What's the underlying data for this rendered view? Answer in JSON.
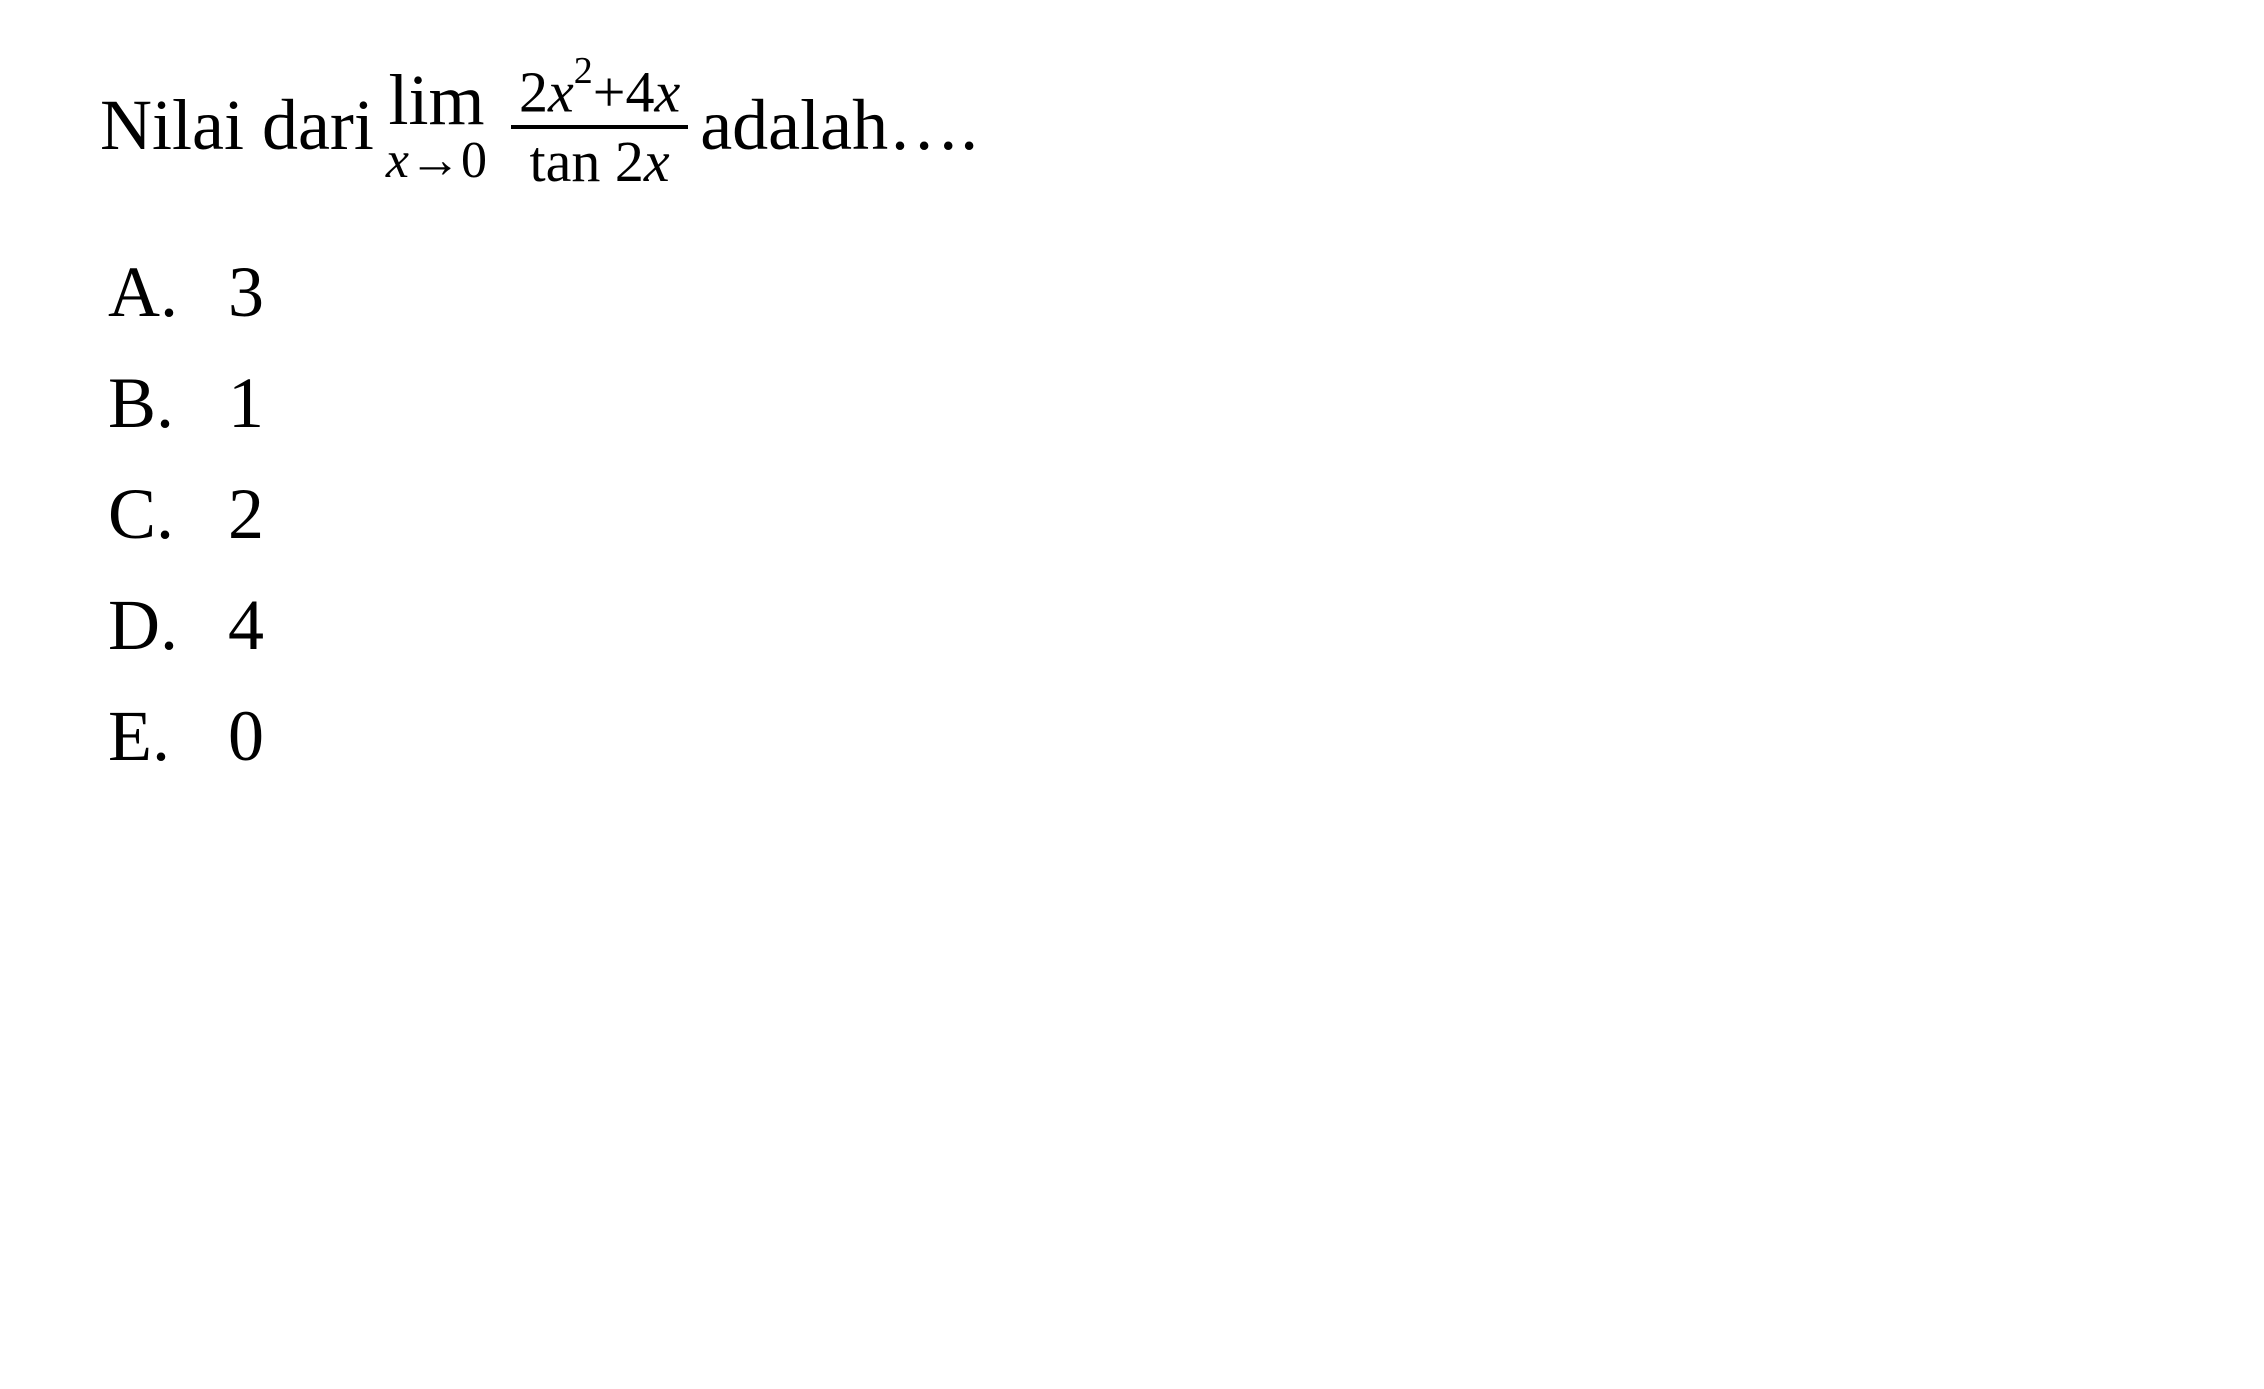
{
  "question": {
    "prefix_text": "Nilai dari ",
    "limit_symbol": "lim",
    "limit_approach_var": "x",
    "limit_approach_arrow": "→",
    "limit_approach_value": "0",
    "fraction_numerator_coef1": "2",
    "fraction_numerator_var1": "x",
    "fraction_numerator_exp": "2",
    "fraction_numerator_op": "+",
    "fraction_numerator_coef2": "4",
    "fraction_numerator_var2": "x",
    "fraction_denom_func": "tan",
    "fraction_denom_coef": "2",
    "fraction_denom_var": "x",
    "suffix_text": " adalah…."
  },
  "options": [
    {
      "label": "A.",
      "value": "3"
    },
    {
      "label": "B.",
      "value": "1"
    },
    {
      "label": "C.",
      "value": "2"
    },
    {
      "label": "D.",
      "value": "4"
    },
    {
      "label": "E.",
      "value": "0"
    }
  ],
  "style": {
    "font_color": "#000000",
    "background_color": "#ffffff",
    "question_fontsize": 72,
    "option_fontsize": 72,
    "limit_sub_fontsize": 52,
    "fraction_fontsize": 58,
    "superscript_fontsize": 38,
    "fraction_rule_thickness": 4
  }
}
